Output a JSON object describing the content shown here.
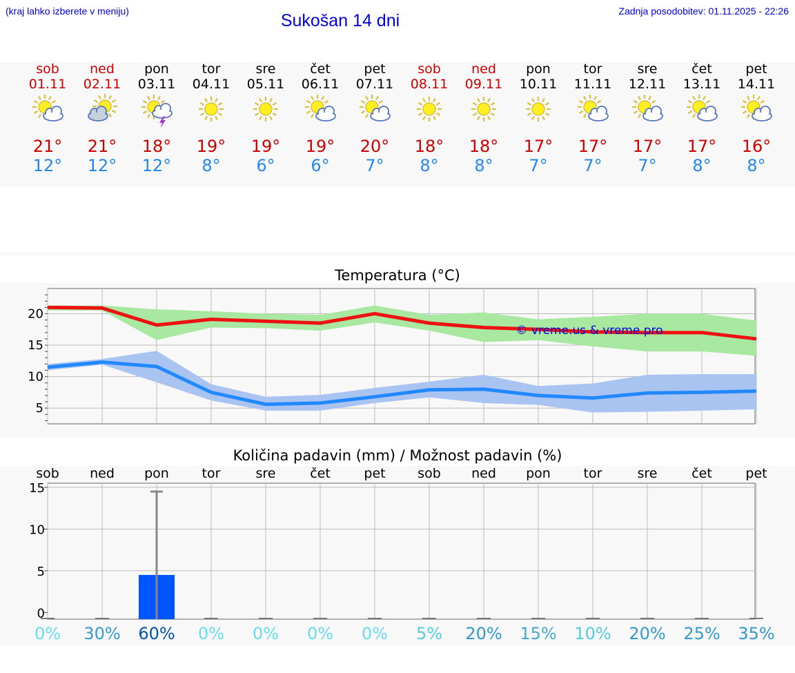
{
  "header": {
    "hint": "(kraj lahko izberete v meniju)",
    "title": "Sukošan 14 dni",
    "updated": "Zadnja posodobitev: 01.11.2025 - 22:26"
  },
  "days": [
    {
      "name": "sob",
      "date": "01.11",
      "weekend": true,
      "icon": "sun-cloud-icon",
      "max": "21°",
      "min": "12°"
    },
    {
      "name": "ned",
      "date": "02.11",
      "weekend": true,
      "icon": "cloudy-sun-icon",
      "max": "21°",
      "min": "12°"
    },
    {
      "name": "pon",
      "date": "03.11",
      "weekend": false,
      "icon": "sun-storm-icon",
      "max": "18°",
      "min": "12°"
    },
    {
      "name": "tor",
      "date": "04.11",
      "weekend": false,
      "icon": "sun-icon",
      "max": "19°",
      "min": "8°"
    },
    {
      "name": "sre",
      "date": "05.11",
      "weekend": false,
      "icon": "sun-icon",
      "max": "19°",
      "min": "6°"
    },
    {
      "name": "čet",
      "date": "06.11",
      "weekend": false,
      "icon": "sun-cloud-icon",
      "max": "19°",
      "min": "6°"
    },
    {
      "name": "pet",
      "date": "07.11",
      "weekend": false,
      "icon": "sun-cloud-icon",
      "max": "20°",
      "min": "7°"
    },
    {
      "name": "sob",
      "date": "08.11",
      "weekend": true,
      "icon": "sun-icon",
      "max": "18°",
      "min": "8°"
    },
    {
      "name": "ned",
      "date": "09.11",
      "weekend": true,
      "icon": "sun-icon",
      "max": "18°",
      "min": "8°"
    },
    {
      "name": "pon",
      "date": "10.11",
      "weekend": false,
      "icon": "sun-icon",
      "max": "17°",
      "min": "7°"
    },
    {
      "name": "tor",
      "date": "11.11",
      "weekend": false,
      "icon": "sun-cloud-icon",
      "max": "17°",
      "min": "7°"
    },
    {
      "name": "sre",
      "date": "12.11",
      "weekend": false,
      "icon": "sun-cloud-icon",
      "max": "17°",
      "min": "7°"
    },
    {
      "name": "čet",
      "date": "13.11",
      "weekend": false,
      "icon": "sun-cloud-icon",
      "max": "17°",
      "min": "8°"
    },
    {
      "name": "pet",
      "date": "14.11",
      "weekend": false,
      "icon": "sun-cloud-icon",
      "max": "16°",
      "min": "8°"
    }
  ],
  "colors": {
    "max_line": "#ee1111",
    "max_band": "#a8e8a0",
    "min_line": "#2288ff",
    "min_band": "#aac4f2",
    "bar": "#0055ff",
    "whisker": "#888888",
    "grid": "#bbbbbb"
  },
  "chart_data": [
    {
      "type": "line",
      "title": "Temperatura (°C)",
      "x": [
        0,
        1,
        2,
        3,
        4,
        5,
        6,
        7,
        8,
        9,
        10,
        11,
        12,
        13
      ],
      "ylim": [
        2.5,
        24
      ],
      "yticks": [
        5,
        10,
        15,
        20
      ],
      "watermark": "© vreme.us & vreme.pro",
      "series": [
        {
          "name": "max",
          "values": [
            21.0,
            20.9,
            18.2,
            19.1,
            18.8,
            18.5,
            20.0,
            18.5,
            17.8,
            17.5,
            17.1,
            17.0,
            17.0,
            16.0
          ],
          "low": [
            20.5,
            20.5,
            15.8,
            17.8,
            17.7,
            17.3,
            18.6,
            17.3,
            15.5,
            15.8,
            14.8,
            14.0,
            14.0,
            13.3
          ],
          "high": [
            21.3,
            21.3,
            20.7,
            20.4,
            20.0,
            19.8,
            21.3,
            19.8,
            20.2,
            19.1,
            19.5,
            20.0,
            20.0,
            18.9
          ]
        },
        {
          "name": "min",
          "values": [
            11.5,
            12.3,
            11.6,
            7.5,
            5.6,
            5.8,
            6.8,
            7.9,
            8.0,
            7.0,
            6.6,
            7.4,
            7.5,
            7.7
          ],
          "low": [
            11.0,
            11.9,
            9.1,
            6.2,
            4.6,
            4.6,
            5.8,
            6.7,
            5.8,
            5.5,
            4.3,
            4.4,
            4.6,
            4.8
          ],
          "high": [
            12.0,
            12.8,
            14.1,
            8.8,
            6.8,
            7.1,
            8.2,
            9.2,
            10.3,
            8.5,
            8.9,
            10.3,
            10.4,
            10.4
          ]
        }
      ]
    },
    {
      "type": "bar",
      "title": "Količina padavin (mm) / Možnost padavin (%)",
      "categories": [
        "sob",
        "ned",
        "pon",
        "tor",
        "sre",
        "čet",
        "pet",
        "sob",
        "ned",
        "pon",
        "tor",
        "sre",
        "čet",
        "pet"
      ],
      "values": [
        0,
        0,
        4.5,
        0,
        0,
        0,
        0,
        0,
        0,
        0,
        0,
        0,
        0,
        0
      ],
      "error_high": [
        0,
        0,
        14.5,
        0,
        0,
        0,
        0,
        0,
        0,
        0,
        0,
        0,
        0,
        0
      ],
      "ylim": [
        -0.8,
        15.5
      ],
      "yticks": [
        0,
        5,
        10,
        15
      ],
      "chance": [
        "0%",
        "30%",
        "60%",
        "0%",
        "0%",
        "0%",
        "0%",
        "5%",
        "20%",
        "15%",
        "10%",
        "20%",
        "25%",
        "35%"
      ],
      "chance_colors": [
        "#66ddee",
        "#3399cc",
        "#0055aa",
        "#66ddee",
        "#66ddee",
        "#66ddee",
        "#66ddee",
        "#55ccdd",
        "#3399cc",
        "#44aacc",
        "#55ccdd",
        "#3399cc",
        "#3399cc",
        "#3399cc"
      ]
    }
  ]
}
